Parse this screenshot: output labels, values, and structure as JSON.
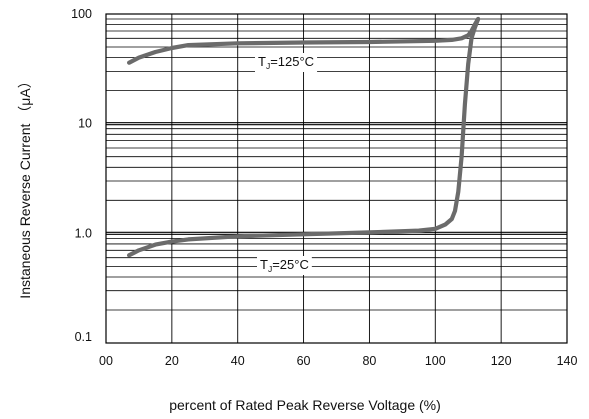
{
  "chart_data": {
    "type": "line",
    "xlabel": "percent of Rated Peak Reverse Voltage (%)",
    "ylabel": "Instaneous Reverse Current （μA）",
    "xlim": [
      0,
      140
    ],
    "ylim": [
      0.1,
      100
    ],
    "y_scale": "log",
    "grid": true,
    "x_ticks": [
      "00",
      "20",
      "40",
      "60",
      "80",
      "100",
      "120",
      "140"
    ],
    "y_ticks": [
      "0.1",
      "1.0",
      "10",
      "100"
    ],
    "colors": {
      "curve": "#6b6b6b",
      "grid": "#000000"
    },
    "series": [
      {
        "name_main": "T",
        "name_sub": "J",
        "name_rest": "=125°C",
        "x": [
          7,
          10,
          15,
          20,
          25,
          40,
          60,
          80,
          100,
          105,
          108,
          110,
          111,
          112,
          113
        ],
        "y": [
          36,
          40,
          45,
          49,
          52,
          54,
          55,
          55.5,
          57,
          58,
          60,
          64,
          70,
          80,
          90
        ]
      },
      {
        "name_main": "T",
        "name_sub": "J",
        "name_rest": "=25°C",
        "x": [
          7,
          10,
          15,
          20,
          25,
          40,
          60,
          80,
          95,
          100,
          103,
          105,
          106,
          107,
          108,
          109,
          110,
          111,
          112,
          113
        ],
        "y": [
          0.63,
          0.7,
          0.79,
          0.84,
          0.88,
          0.94,
          0.98,
          1.02,
          1.06,
          1.1,
          1.2,
          1.35,
          1.6,
          2.4,
          5.0,
          15,
          35,
          60,
          75,
          90
        ]
      }
    ]
  }
}
